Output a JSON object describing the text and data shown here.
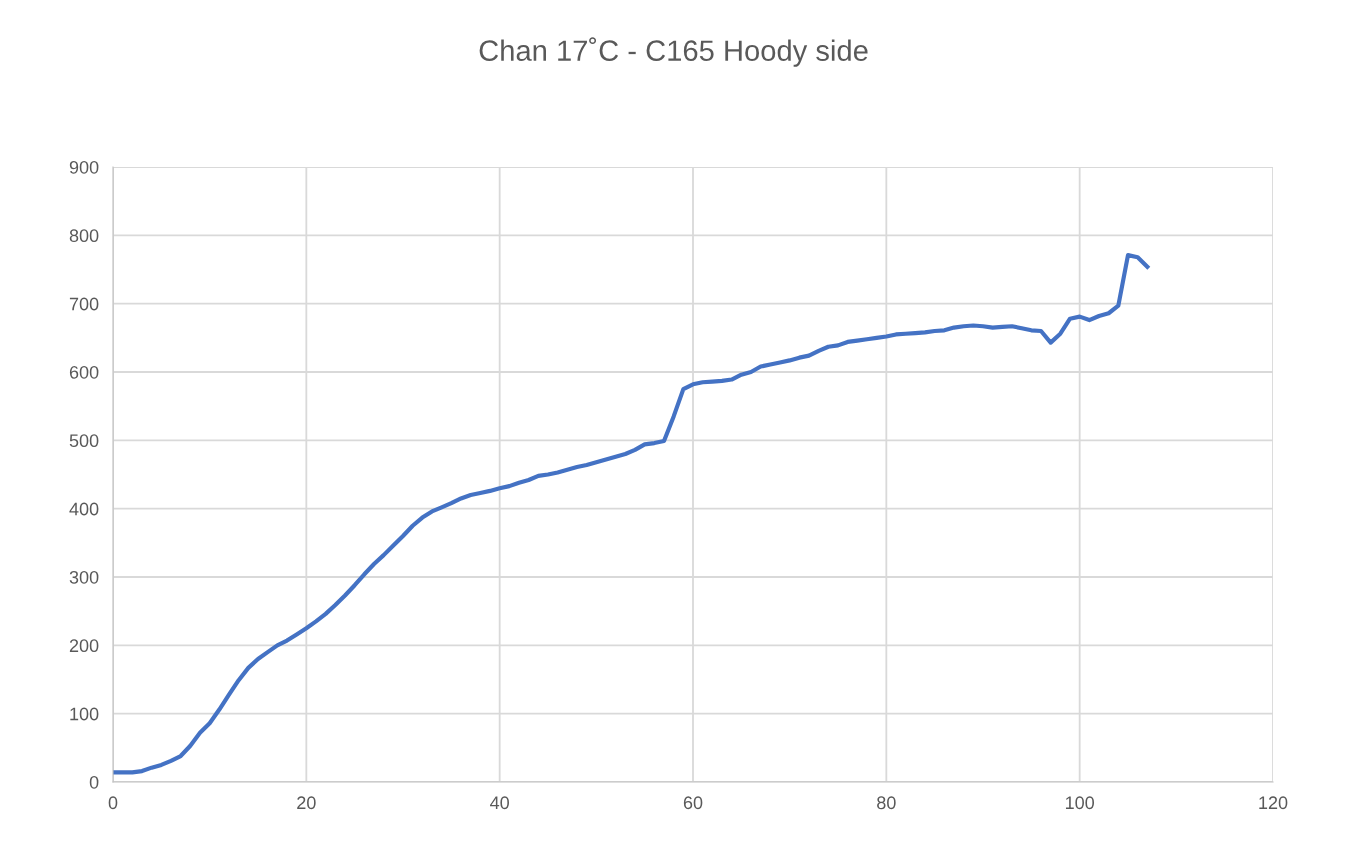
{
  "chart_data": {
    "type": "line",
    "title": "Chan 17˚C - C165 Hoody side",
    "x": [
      0,
      1,
      2,
      3,
      4,
      5,
      6,
      7,
      8,
      9,
      10,
      11,
      12,
      13,
      14,
      15,
      16,
      17,
      18,
      19,
      20,
      21,
      22,
      23,
      24,
      25,
      26,
      27,
      28,
      29,
      30,
      31,
      32,
      33,
      34,
      35,
      36,
      37,
      38,
      39,
      40,
      41,
      42,
      43,
      44,
      45,
      46,
      47,
      48,
      49,
      50,
      51,
      52,
      53,
      54,
      55,
      56,
      57,
      58,
      59,
      60,
      61,
      62,
      63,
      64,
      65,
      66,
      67,
      68,
      69,
      70,
      71,
      72,
      73,
      74,
      75,
      76,
      77,
      78,
      79,
      80,
      81,
      82,
      83,
      84,
      85,
      86,
      87,
      88,
      89,
      90,
      91,
      92,
      93,
      94,
      95,
      96,
      97,
      98,
      99,
      100,
      101,
      102,
      103,
      104,
      105,
      106,
      107
    ],
    "series": [
      {
        "color": "#4472c4",
        "values": [
          14,
          14,
          14,
          16,
          21,
          25,
          31,
          38,
          53,
          72,
          86,
          106,
          128,
          149,
          167,
          180,
          190,
          200,
          207,
          216,
          225,
          235,
          246,
          259,
          273,
          288,
          304,
          319,
          332,
          346,
          360,
          375,
          387,
          396,
          402,
          408,
          415,
          420,
          423,
          426,
          430,
          433,
          438,
          442,
          448,
          450,
          453,
          457,
          461,
          464,
          468,
          472,
          476,
          480,
          486,
          494,
          496,
          499,
          535,
          575,
          582,
          585,
          586,
          587,
          589,
          596,
          600,
          608,
          611,
          614,
          617,
          621,
          624,
          631,
          637,
          639,
          644,
          646,
          648,
          650,
          652,
          655,
          656,
          657,
          658,
          660,
          661,
          665,
          667,
          668,
          667,
          665,
          666,
          667,
          664,
          661,
          660,
          643,
          656,
          678,
          681,
          676,
          682,
          686,
          697,
          771,
          768,
          754
        ]
      }
    ],
    "xlim": [
      0,
      120
    ],
    "xticks": [
      0,
      20,
      40,
      60,
      80,
      100,
      120
    ],
    "ylim": [
      0,
      900
    ],
    "yticks": [
      0,
      100,
      200,
      300,
      400,
      500,
      600,
      700,
      800,
      900
    ],
    "grid": true,
    "marker": "none",
    "line_style": "solid"
  }
}
